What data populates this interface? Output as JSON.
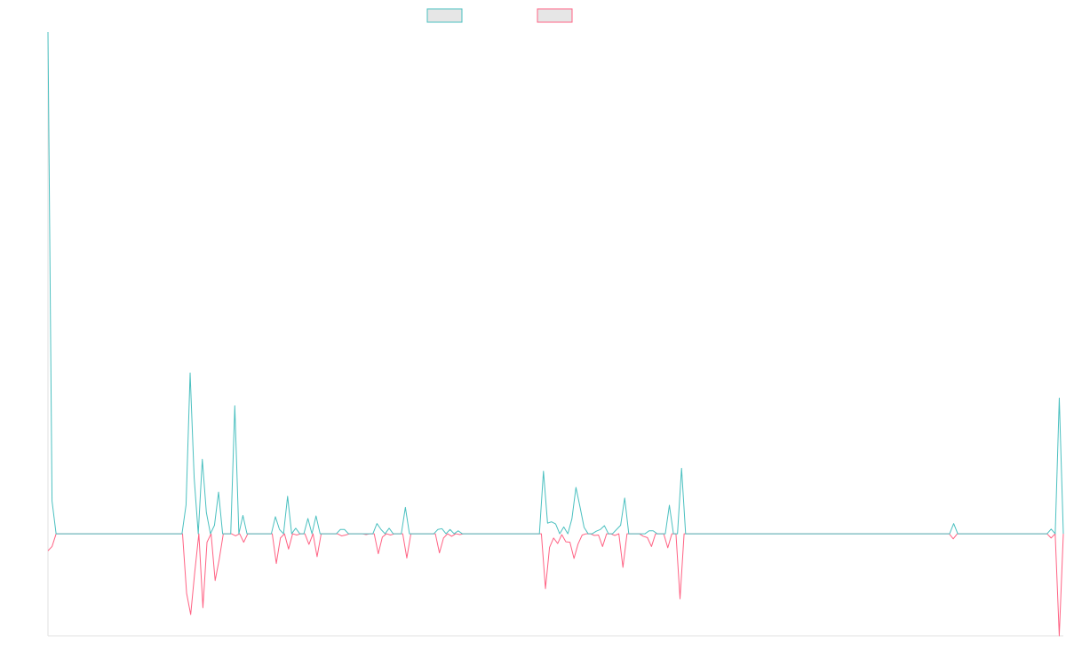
{
  "chart_data": {
    "type": "line",
    "title": "",
    "xlabel": "",
    "ylabel": "",
    "ylim": [
      -24,
      118
    ],
    "legend": {
      "placement": "top-center",
      "show_text": false
    },
    "grid": false,
    "colors": {
      "series_a": "#4bc0c0",
      "series_b": "#ff6384",
      "legend_fill": "#e6e6e6",
      "axis": "#e0e0e0"
    },
    "series": [
      {
        "key": "a",
        "values": [
          118,
          7.7,
          0,
          0,
          0,
          0,
          0,
          0,
          0,
          0,
          0,
          0,
          0,
          0,
          0,
          0,
          0,
          0,
          0,
          0,
          0,
          0,
          0,
          0,
          0,
          0,
          0,
          0,
          0,
          0,
          0,
          0,
          0,
          0,
          6.8,
          37.8,
          13.1,
          0,
          17.5,
          5,
          0,
          2,
          9.8,
          0,
          0,
          0,
          30.1,
          0,
          4.3,
          0,
          0,
          0,
          0,
          0,
          0,
          0,
          4,
          1,
          0,
          8.8,
          0,
          1.3,
          0,
          0,
          3.6,
          0,
          4.2,
          0,
          0,
          0,
          0,
          0,
          1,
          1,
          0,
          0,
          0,
          0,
          0,
          0,
          0,
          2.4,
          1,
          0,
          1.3,
          0,
          0,
          0,
          6.2,
          0,
          0,
          0,
          0,
          0,
          0,
          0,
          1,
          1.2,
          0,
          1,
          0,
          0.7,
          0,
          0,
          0,
          0,
          0,
          0,
          0,
          0,
          0,
          0,
          0,
          0,
          0,
          0,
          0,
          0,
          0,
          0,
          0,
          0,
          14.7,
          2.5,
          2.8,
          2.3,
          0,
          1.6,
          0,
          3.5,
          10.9,
          6.3,
          1.5,
          0,
          0,
          0.6,
          1,
          1.9,
          0,
          0,
          1,
          2,
          8.4,
          0,
          0,
          0,
          0,
          0,
          0.7,
          0.7,
          0,
          0,
          0,
          6.7,
          0,
          0,
          15.4,
          0,
          0,
          0,
          0,
          0,
          0,
          0,
          0,
          0,
          0,
          0,
          0,
          0,
          0,
          0,
          0,
          0,
          0,
          0,
          0,
          0,
          0,
          0,
          0,
          0,
          0,
          0,
          0,
          0,
          0,
          0,
          0,
          0,
          0,
          0,
          0,
          0,
          0,
          0,
          0,
          0,
          0,
          0,
          0,
          0,
          0,
          0,
          0,
          0,
          0,
          0,
          0,
          0,
          0,
          0,
          0,
          0,
          0,
          0,
          0,
          0,
          0,
          0,
          0,
          0,
          0,
          2.4,
          0,
          0,
          0,
          0,
          0,
          0,
          0,
          0,
          0,
          0,
          0,
          0,
          0,
          0,
          0,
          0,
          0,
          0,
          0,
          0,
          0,
          0,
          0,
          1.1,
          0,
          31.9,
          0
        ]
      },
      {
        "key": "b",
        "values": [
          -4,
          -3,
          0,
          0,
          0,
          0,
          0,
          0,
          0,
          0,
          0,
          0,
          0,
          0,
          0,
          0,
          0,
          0,
          0,
          0,
          0,
          0,
          0,
          0,
          0,
          0,
          0,
          0,
          0,
          0,
          0,
          0,
          0,
          0,
          -14,
          -19,
          -9,
          0,
          -17.4,
          -2,
          0,
          -11,
          -6,
          0,
          0,
          0,
          -0.5,
          0,
          -2,
          0,
          0,
          0,
          0,
          0,
          0,
          0,
          -7,
          -1,
          0,
          -3.6,
          0,
          -0.3,
          0,
          0,
          -2.5,
          0,
          -5.4,
          0,
          0,
          0,
          0,
          0,
          -0.5,
          -0.3,
          0,
          0,
          0,
          0,
          -0.2,
          0,
          0,
          -4.7,
          -0.8,
          0,
          -0.3,
          0,
          0,
          0,
          -5.7,
          0,
          0,
          0,
          0,
          0,
          0,
          0,
          -4.5,
          -1,
          0,
          -0.6,
          0,
          -0.2,
          0,
          0,
          0,
          0,
          0,
          0,
          0,
          0,
          0,
          0,
          0,
          0,
          0,
          0,
          0,
          0,
          0,
          0,
          0,
          0,
          -12.9,
          -3.2,
          -1,
          -2.3,
          -0.2,
          -1.9,
          -2,
          -5.8,
          -2.4,
          -0.3,
          0,
          0,
          -0.4,
          -0.3,
          -3,
          0,
          0,
          -0.4,
          0,
          -7.9,
          0,
          0,
          0,
          0,
          -0.6,
          -0.9,
          -3,
          0,
          0,
          0,
          -3.3,
          0,
          0,
          -15.3,
          0,
          0,
          0,
          0,
          0,
          0,
          0,
          0,
          0,
          0,
          0,
          0,
          0,
          0,
          0,
          0,
          0,
          0,
          0,
          0,
          0,
          0,
          0,
          0,
          0,
          0,
          0,
          0,
          0,
          0,
          0,
          0,
          0,
          0,
          0,
          0,
          0,
          0,
          0,
          0,
          0,
          0,
          0,
          0,
          0,
          0,
          0,
          0,
          0,
          0,
          0,
          0,
          0,
          0,
          0,
          0,
          0,
          0,
          0,
          0,
          0,
          0,
          0,
          0,
          0,
          0,
          -1.2,
          0,
          0,
          0,
          0,
          0,
          0,
          0,
          0,
          0,
          0,
          0,
          0,
          0,
          0,
          0,
          0,
          0,
          0,
          0,
          0,
          0,
          0,
          0,
          -1,
          0,
          -24,
          0
        ]
      }
    ]
  }
}
